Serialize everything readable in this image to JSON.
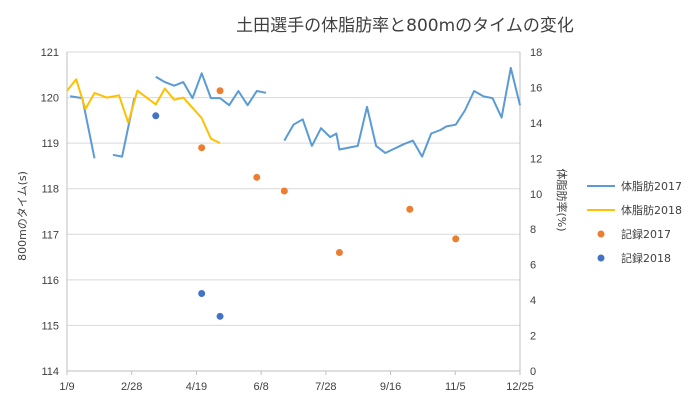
{
  "chart_data": {
    "type": "line",
    "title": "土田選手の体脂肪率と800mのタイムの変化",
    "ylabel_left": "800mのタイム(s)",
    "ylabel_right": "体脂肪率(%)",
    "x_ticks": [
      "1/9",
      "2/28",
      "4/19",
      "6/8",
      "7/28",
      "9/16",
      "11/5",
      "12/25"
    ],
    "ylim_left": [
      114,
      121
    ],
    "yticks_left": [
      114,
      115,
      116,
      117,
      118,
      119,
      120,
      121
    ],
    "ylim_right": [
      0,
      18
    ],
    "yticks_right": [
      0,
      2,
      4,
      6,
      8,
      10,
      12,
      14,
      16,
      18
    ],
    "grid": "horizontal",
    "legend_position": "right",
    "series": [
      {
        "name": "体脂肪2017",
        "kind": "line",
        "axis": "right",
        "color": "#5B9BD5",
        "segments": [
          [
            [
              1,
              15.5
            ],
            [
              5,
              15.4
            ],
            [
              9,
              12.0
            ]
          ],
          [
            [
              15,
              12.2
            ],
            [
              18,
              12.1
            ],
            [
              22,
              15.4
            ]
          ],
          [
            [
              29,
              16.6
            ],
            [
              32,
              16.3
            ],
            [
              35,
              16.1
            ],
            [
              38,
              16.3
            ],
            [
              41,
              15.4
            ],
            [
              44,
              16.8
            ],
            [
              47,
              15.4
            ],
            [
              50,
              15.4
            ],
            [
              53,
              15.0
            ],
            [
              56,
              15.8
            ],
            [
              59,
              15.0
            ],
            [
              62,
              15.8
            ],
            [
              65,
              15.7
            ]
          ],
          [
            [
              71,
              13.0
            ],
            [
              74,
              13.9
            ],
            [
              77,
              14.2
            ],
            [
              80,
              12.7
            ],
            [
              83,
              13.7
            ],
            [
              86,
              13.2
            ],
            [
              88,
              13.4
            ],
            [
              89,
              12.5
            ],
            [
              95,
              12.7
            ],
            [
              98,
              14.9
            ],
            [
              101,
              12.7
            ],
            [
              104,
              12.3
            ],
            [
              110,
              12.8
            ],
            [
              113,
              13.0
            ],
            [
              116,
              12.1
            ],
            [
              119,
              13.4
            ],
            [
              122,
              13.6
            ],
            [
              124,
              13.8
            ],
            [
              127,
              13.9
            ],
            [
              130,
              14.7
            ],
            [
              133,
              15.8
            ],
            [
              136,
              15.5
            ],
            [
              139,
              15.4
            ],
            [
              142,
              14.3
            ],
            [
              145,
              17.1
            ],
            [
              148,
              15.0
            ]
          ]
        ]
      },
      {
        "name": "体脂肪2018",
        "kind": "line",
        "axis": "left",
        "color": "#FFC000",
        "segments": [
          [
            [
              0,
              120.15
            ],
            [
              3,
              120.4
            ],
            [
              6,
              119.75
            ],
            [
              9,
              120.1
            ],
            [
              13,
              120.0
            ],
            [
              17,
              120.05
            ],
            [
              20,
              119.45
            ],
            [
              23,
              120.15
            ],
            [
              29,
              119.85
            ],
            [
              32,
              120.2
            ],
            [
              35,
              119.95
            ],
            [
              38,
              120.0
            ],
            [
              44,
              119.55
            ],
            [
              47,
              119.1
            ],
            [
              50,
              119.0
            ]
          ]
        ]
      },
      {
        "name": "記録2017",
        "kind": "scatter",
        "axis": "left",
        "color": "#ED7D31",
        "points": [
          [
            44,
            118.9
          ],
          [
            50,
            120.15
          ],
          [
            62,
            118.25
          ],
          [
            71,
            117.95
          ],
          [
            89,
            116.6
          ],
          [
            112,
            117.55
          ],
          [
            127,
            116.9
          ]
        ]
      },
      {
        "name": "記録2018",
        "kind": "scatter",
        "axis": "left",
        "color": "#4472C4",
        "points": [
          [
            29,
            119.6
          ],
          [
            44,
            115.7
          ],
          [
            50,
            115.2
          ]
        ]
      }
    ]
  }
}
